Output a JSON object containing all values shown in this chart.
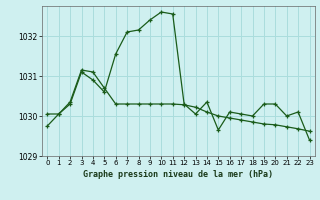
{
  "title": "Graphe pression niveau de la mer (hPa)",
  "background_color": "#cff0f0",
  "grid_color": "#aadddd",
  "line_color": "#1a5c1a",
  "xlim": [
    -0.5,
    23.5
  ],
  "ylim": [
    1029.0,
    1032.75
  ],
  "yticks": [
    1029,
    1030,
    1031,
    1032
  ],
  "xticks": [
    0,
    1,
    2,
    3,
    4,
    5,
    6,
    7,
    8,
    9,
    10,
    11,
    12,
    13,
    14,
    15,
    16,
    17,
    18,
    19,
    20,
    21,
    22,
    23
  ],
  "line1_x": [
    0,
    1,
    2,
    3,
    4,
    5,
    6,
    7,
    8,
    9,
    10,
    11,
    12,
    13,
    14,
    15,
    16,
    17,
    18,
    19,
    20,
    21,
    22,
    23
  ],
  "line1_y": [
    1029.75,
    1030.05,
    1030.3,
    1031.1,
    1030.9,
    1030.6,
    1031.55,
    1032.1,
    1032.15,
    1032.4,
    1032.6,
    1032.55,
    1030.3,
    1030.05,
    1030.35,
    1029.65,
    1030.1,
    1030.05,
    1030.0,
    1030.3,
    1030.3,
    1030.0,
    1030.1,
    1029.4
  ],
  "line2_x": [
    0,
    1,
    2,
    3,
    4,
    5,
    6,
    7,
    8,
    9,
    10,
    11,
    12,
    13,
    14,
    15,
    16,
    17,
    18,
    19,
    20,
    21,
    22,
    23
  ],
  "line2_y": [
    1030.05,
    1030.05,
    1030.35,
    1031.15,
    1031.1,
    1030.7,
    1030.3,
    1030.3,
    1030.3,
    1030.3,
    1030.3,
    1030.3,
    1030.28,
    1030.22,
    1030.1,
    1030.0,
    1029.95,
    1029.9,
    1029.85,
    1029.8,
    1029.78,
    1029.73,
    1029.68,
    1029.62
  ]
}
